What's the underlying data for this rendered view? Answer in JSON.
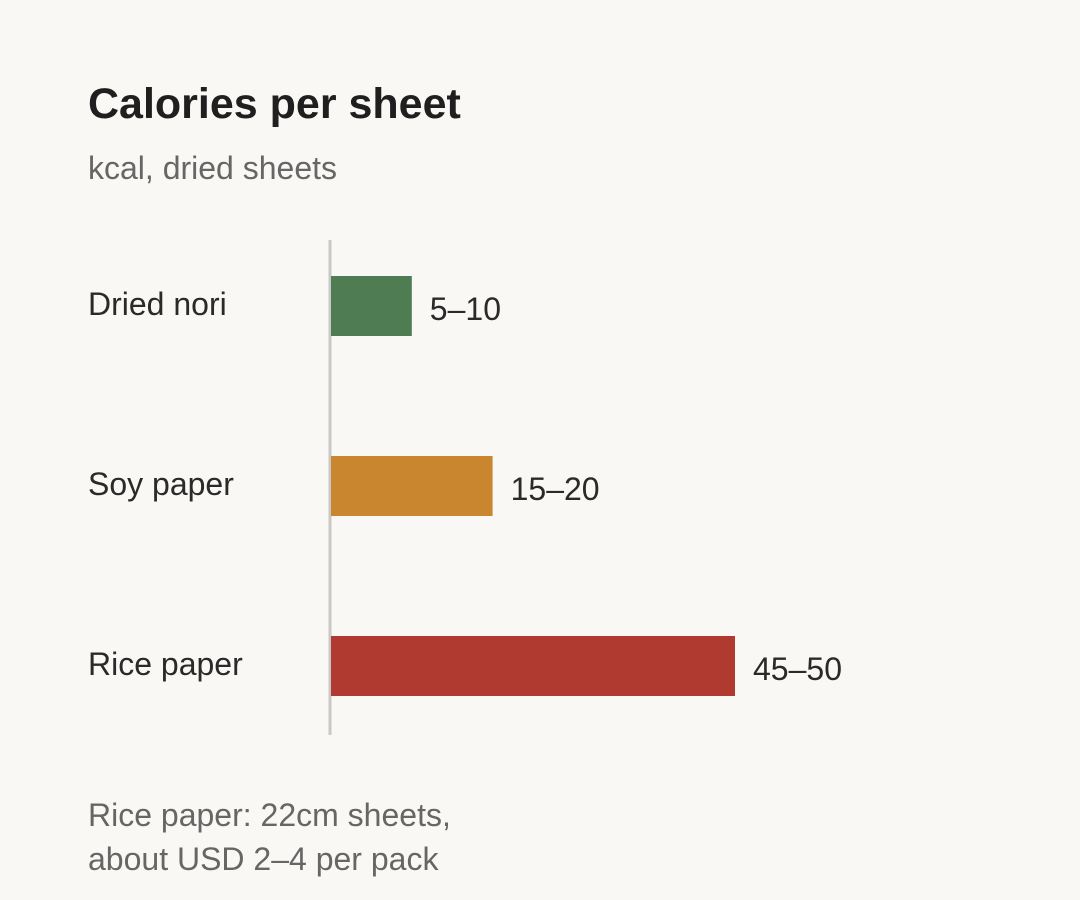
{
  "chart_data": {
    "type": "bar",
    "orientation": "horizontal",
    "title": "Calories per sheet",
    "subtitle": "kcal, dried sheets",
    "xlim": [
      0,
      50
    ],
    "grid": false,
    "categories": [
      "Dried nori",
      "Soy paper",
      "Rice paper"
    ],
    "values": [
      {
        "low": 5,
        "high": 10,
        "label": "5–10",
        "color": "#4f7c52"
      },
      {
        "low": 15,
        "high": 20,
        "label": "15–20",
        "color": "#c9862f"
      },
      {
        "low": 45,
        "high": 50,
        "label": "45–50",
        "color": "#b03a30"
      }
    ]
  },
  "footnote": {
    "line1": "Rice paper: 22cm sheets,",
    "line2": "about USD 2–4 per pack"
  }
}
